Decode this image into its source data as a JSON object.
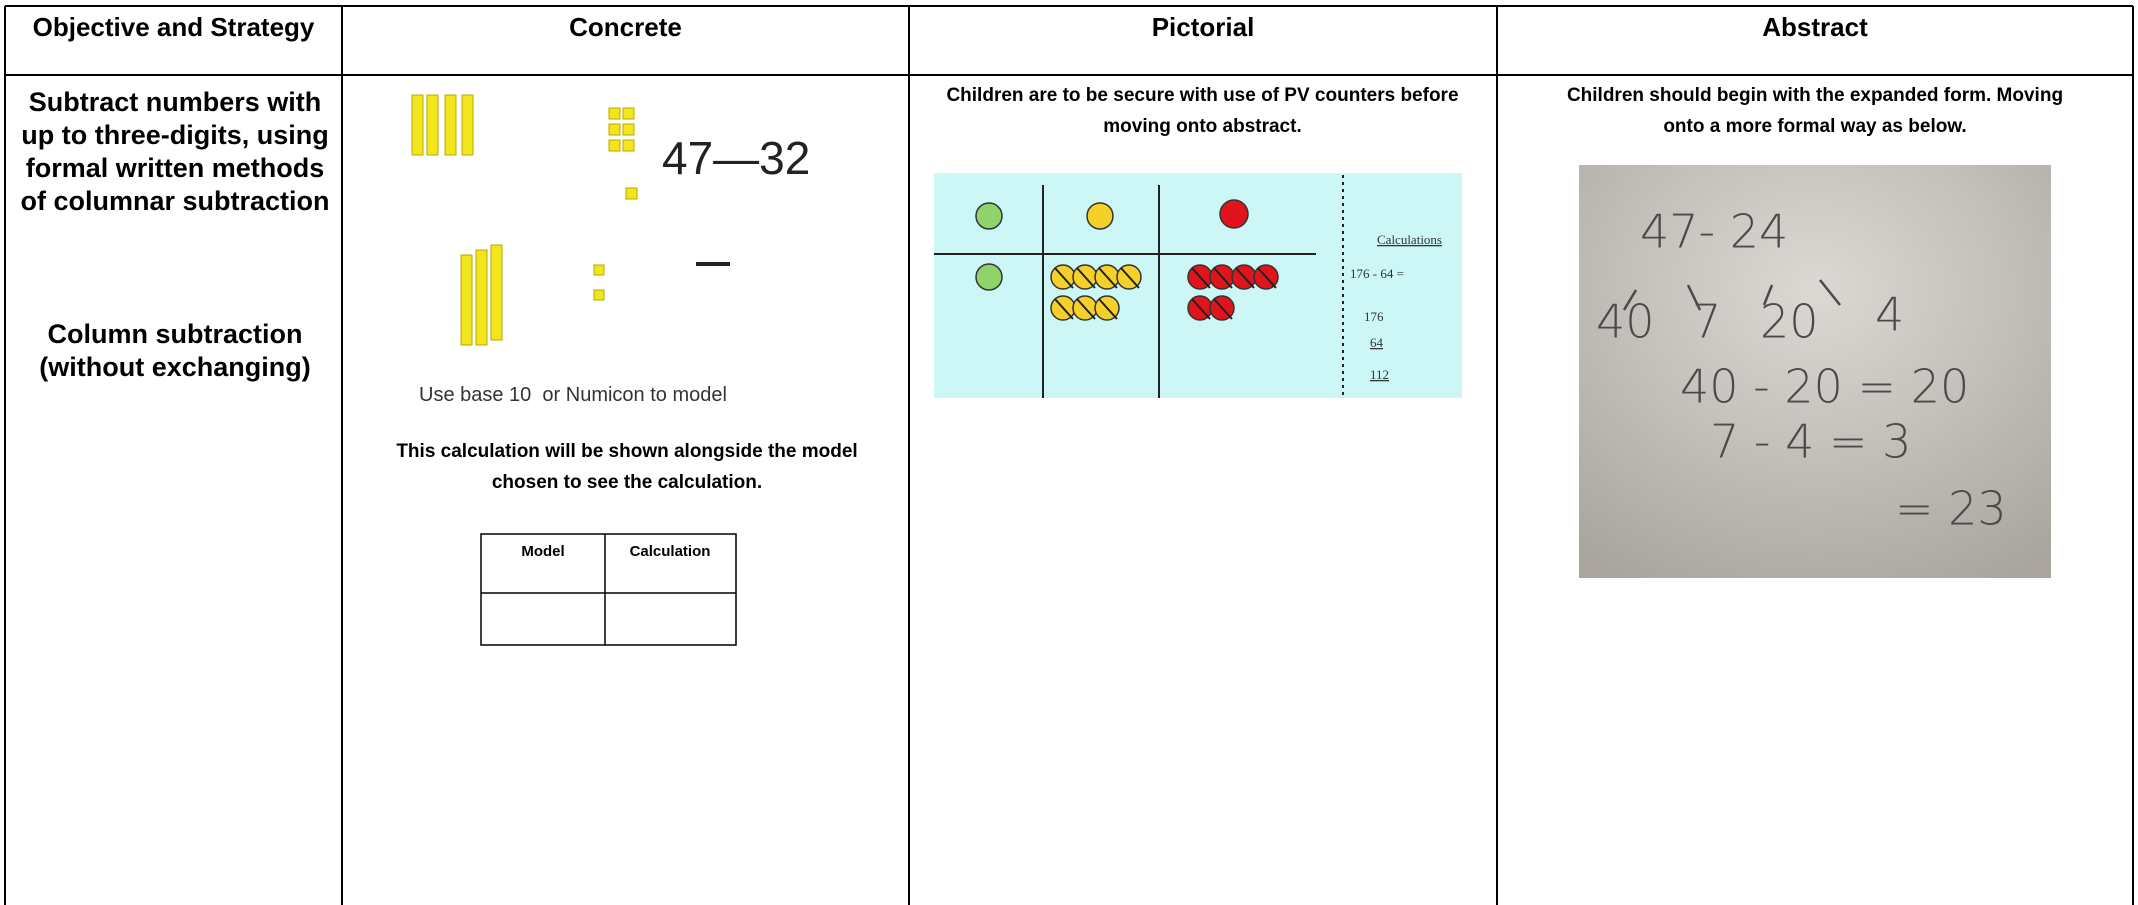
{
  "headers": [
    "Objective and Strategy",
    "Concrete",
    "Pictorial",
    "Abstract"
  ],
  "objective": [
    "Subtract numbers with up to three-digits, using formal written methods of columnar subtraction",
    "Column subtraction (without exchanging)"
  ],
  "concrete": {
    "image_text": "47—32",
    "caption": "Use base 10  or Numicon to model",
    "note": "This calculation will be shown alongside the model chosen to see the calculation.",
    "mini_table_headers": [
      "Model",
      "Calculation"
    ]
  },
  "pictorial": {
    "note": "Children are to be secure with use of PV counters before moving onto abstract.",
    "image_heading": "Calculations",
    "image_sum": "176 - 64 =",
    "image_lines": [
      "176",
      "64",
      "112"
    ]
  },
  "abstract": {
    "note": "Children should begin with the expanded form. Moving onto a more formal way as below.",
    "handwriting": [
      "47- 24",
      "40",
      "7",
      "20",
      "4",
      "40 - 20 = 20",
      "7 - 4 = 3",
      "= 23"
    ]
  }
}
